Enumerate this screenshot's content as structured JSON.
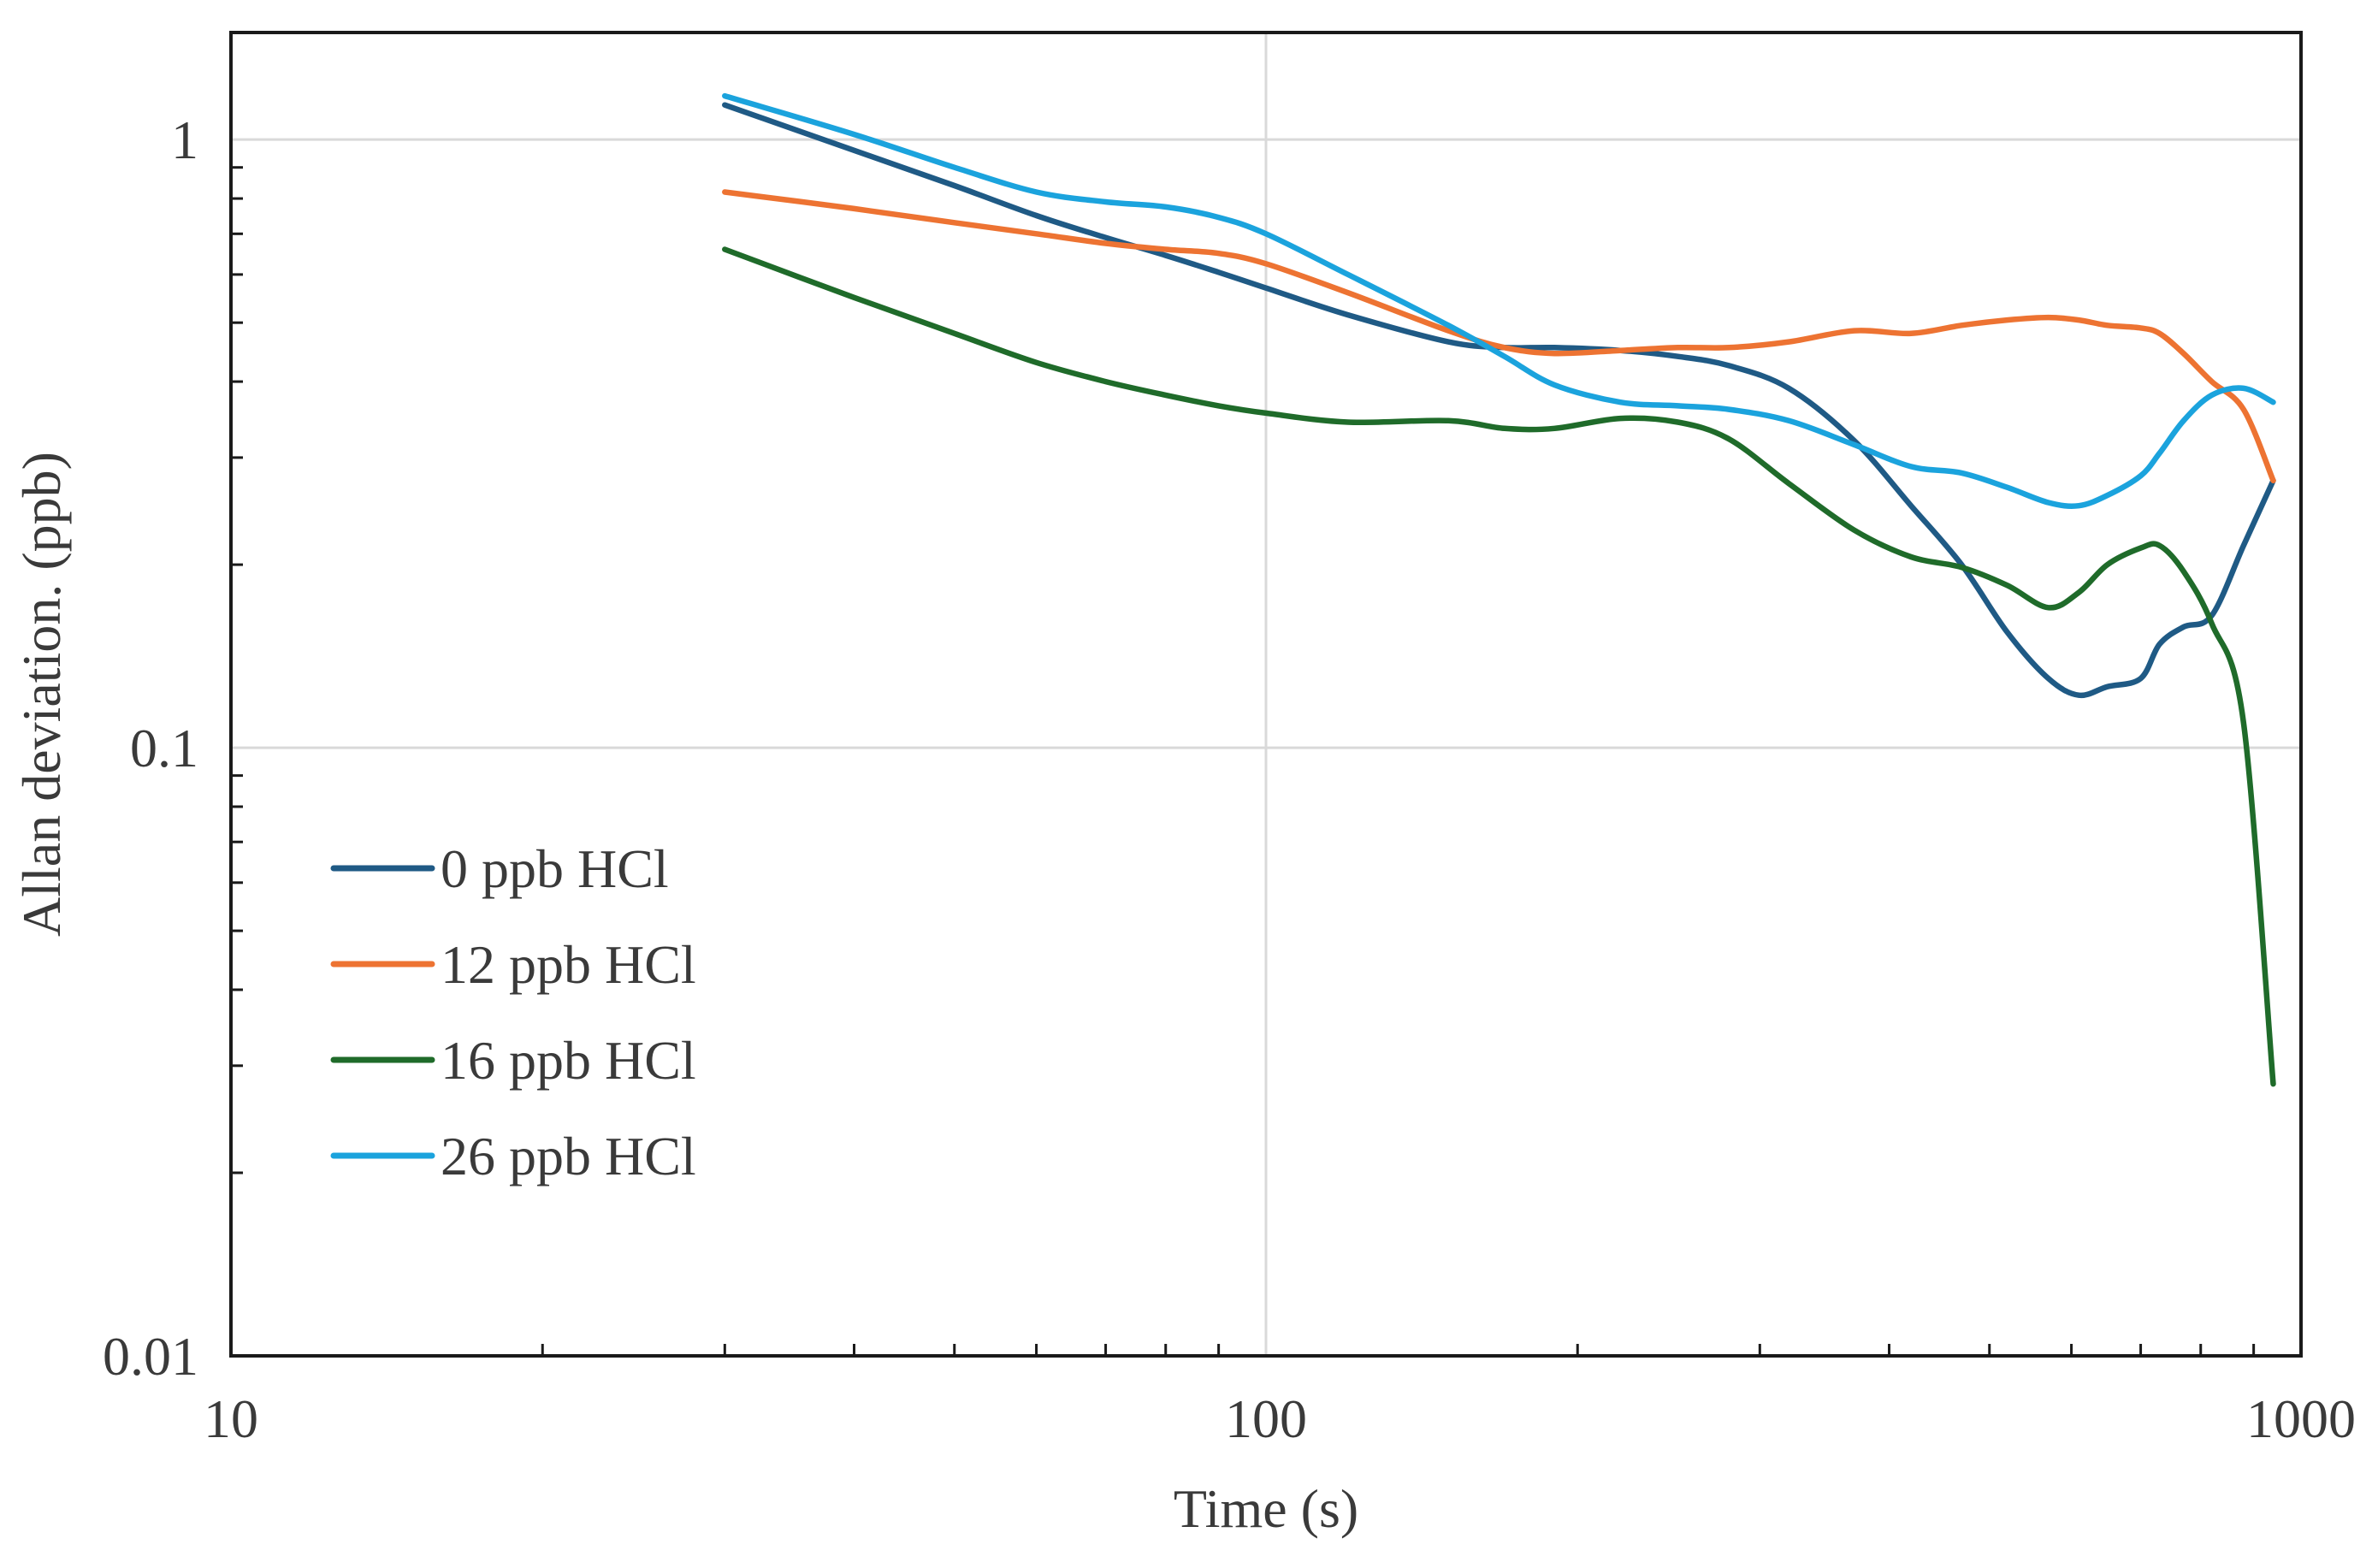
{
  "chart_data": {
    "type": "line",
    "title": "",
    "xlabel": "Time (s)",
    "ylabel": "Allan deviation. (ppb)",
    "xscale": "log",
    "yscale": "log",
    "xlim": [
      10,
      1000
    ],
    "ylim": [
      0.01,
      1.5
    ],
    "x_ticks": [
      {
        "value": 10,
        "label": "10"
      },
      {
        "value": 100,
        "label": "100"
      },
      {
        "value": 1000,
        "label": "1000"
      }
    ],
    "y_ticks": [
      {
        "value": 0.01,
        "label": "0.01"
      },
      {
        "value": 0.1,
        "label": "0.1"
      },
      {
        "value": 1,
        "label": "1"
      }
    ],
    "grid": "major",
    "legend_position": "left-center",
    "series": [
      {
        "name": "0 ppb HCl",
        "color": "#1f5a85",
        "x": [
          30,
          40,
          50,
          60,
          70,
          80,
          90,
          100,
          120,
          150,
          170,
          190,
          220,
          250,
          280,
          320,
          370,
          420,
          470,
          520,
          570,
          610,
          650,
          700,
          730,
          770,
          820,
          880,
          940
        ],
        "y": [
          1.14,
          0.96,
          0.84,
          0.75,
          0.69,
          0.645,
          0.605,
          0.57,
          0.515,
          0.465,
          0.455,
          0.455,
          0.45,
          0.44,
          0.425,
          0.39,
          0.32,
          0.25,
          0.2,
          0.155,
          0.13,
          0.122,
          0.126,
          0.13,
          0.148,
          0.158,
          0.165,
          0.215,
          0.275
        ]
      },
      {
        "name": "12 ppb HCl",
        "color": "#ed7332",
        "x": [
          30,
          40,
          50,
          60,
          70,
          80,
          90,
          100,
          120,
          150,
          170,
          190,
          220,
          250,
          280,
          320,
          370,
          420,
          470,
          520,
          570,
          610,
          650,
          700,
          730,
          770,
          820,
          880,
          940
        ],
        "y": [
          0.82,
          0.77,
          0.73,
          0.7,
          0.675,
          0.66,
          0.65,
          0.625,
          0.56,
          0.485,
          0.455,
          0.445,
          0.45,
          0.455,
          0.455,
          0.465,
          0.485,
          0.48,
          0.495,
          0.505,
          0.51,
          0.505,
          0.495,
          0.49,
          0.48,
          0.445,
          0.4,
          0.36,
          0.275
        ]
      },
      {
        "name": "16 ppb HCl",
        "color": "#1f6b2a",
        "x": [
          30,
          40,
          50,
          60,
          70,
          80,
          90,
          100,
          120,
          150,
          170,
          190,
          220,
          250,
          280,
          320,
          370,
          420,
          470,
          520,
          570,
          610,
          650,
          700,
          730,
          770,
          820,
          880,
          940
        ],
        "y": [
          0.66,
          0.55,
          0.48,
          0.43,
          0.4,
          0.38,
          0.365,
          0.355,
          0.343,
          0.345,
          0.335,
          0.335,
          0.348,
          0.343,
          0.322,
          0.272,
          0.228,
          0.206,
          0.198,
          0.185,
          0.17,
          0.18,
          0.2,
          0.213,
          0.215,
          0.195,
          0.16,
          0.11,
          0.028
        ]
      },
      {
        "name": "26 ppb HCl",
        "color": "#1ba3dd",
        "x": [
          30,
          40,
          50,
          60,
          70,
          80,
          90,
          100,
          120,
          150,
          170,
          190,
          220,
          250,
          280,
          320,
          370,
          420,
          470,
          520,
          570,
          610,
          650,
          700,
          730,
          770,
          820,
          880,
          940
        ],
        "y": [
          1.18,
          1.02,
          0.9,
          0.82,
          0.79,
          0.775,
          0.745,
          0.7,
          0.6,
          0.495,
          0.44,
          0.395,
          0.37,
          0.365,
          0.36,
          0.345,
          0.315,
          0.29,
          0.283,
          0.268,
          0.253,
          0.25,
          0.26,
          0.28,
          0.305,
          0.345,
          0.38,
          0.39,
          0.37
        ]
      }
    ]
  }
}
